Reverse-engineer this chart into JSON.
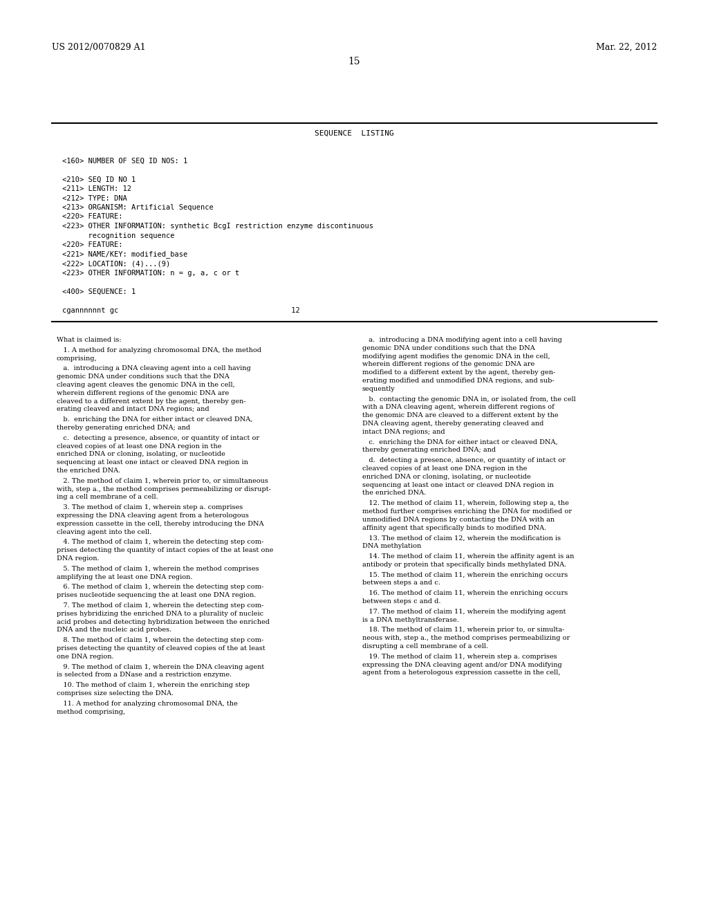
{
  "background_color": "#ffffff",
  "header_left": "US 2012/0070829 A1",
  "header_right": "Mar. 22, 2012",
  "page_number": "15",
  "sequence_listing_title": "SEQUENCE  LISTING",
  "seq_lines": [
    {
      "text": "<160> NUMBER OF SEQ ID NOS: 1",
      "blank_before": 1
    },
    {
      "text": "<210> SEQ ID NO 1",
      "blank_before": 1
    },
    {
      "text": "<211> LENGTH: 12",
      "blank_before": 0
    },
    {
      "text": "<212> TYPE: DNA",
      "blank_before": 0
    },
    {
      "text": "<213> ORGANISM: Artificial Sequence",
      "blank_before": 0
    },
    {
      "text": "<220> FEATURE:",
      "blank_before": 0
    },
    {
      "text": "<223> OTHER INFORMATION: synthetic BcgI restriction enzyme discontinuous",
      "blank_before": 0
    },
    {
      "text": "      recognition sequence",
      "blank_before": 0
    },
    {
      "text": "<220> FEATURE:",
      "blank_before": 0
    },
    {
      "text": "<221> NAME/KEY: modified_base",
      "blank_before": 0
    },
    {
      "text": "<222> LOCATION: (4)...(9)",
      "blank_before": 0
    },
    {
      "text": "<223> OTHER INFORMATION: n = g, a, c or t",
      "blank_before": 0
    },
    {
      "text": "<400> SEQUENCE: 1",
      "blank_before": 1
    },
    {
      "text": "cgannnnnnt gc                                        12",
      "blank_before": 1
    }
  ],
  "left_col_blocks": [
    {
      "indent": 0,
      "text": "What is claimed is:"
    },
    {
      "indent": 1,
      "text": "   1. A method for analyzing chromosomal DNA, the method\ncomprising,"
    },
    {
      "indent": 2,
      "text": "   a.  introducing a DNA cleaving agent into a cell having\ngenomic DNA under conditions such that the DNA\ncleaving agent cleaves the genomic DNA in the cell,\nwherein different regions of the genomic DNA are\ncleaved to a different extent by the agent, thereby gen-\nerating cleaved and intact DNA regions; and"
    },
    {
      "indent": 2,
      "text": "   b.  enriching the DNA for either intact or cleaved DNA,\nthereby generating enriched DNA; and"
    },
    {
      "indent": 2,
      "text": "   c.  detecting a presence, absence, or quantity of intact or\ncleaved copies of at least one DNA region in the\nenriched DNA or cloning, isolating, or nucleotide\nsequencing at least one intact or cleaved DNA region in\nthe enriched DNA."
    },
    {
      "indent": 1,
      "text": "   2. The method of claim 1, wherein prior to, or simultaneous\nwith, step a., the method comprises permeabilizing or disrupt-\ning a cell membrane of a cell."
    },
    {
      "indent": 1,
      "text": "   3. The method of claim 1, wherein step a. comprises\nexpressing the DNA cleaving agent from a heterologous\nexpression cassette in the cell, thereby introducing the DNA\ncleaving agent into the cell."
    },
    {
      "indent": 1,
      "text": "   4. The method of claim 1, wherein the detecting step com-\nprises detecting the quantity of intact copies of the at least one\nDNA region."
    },
    {
      "indent": 1,
      "text": "   5. The method of claim 1, wherein the method comprises\namplifying the at least one DNA region."
    },
    {
      "indent": 1,
      "text": "   6. The method of claim 1, wherein the detecting step com-\nprises nucleotide sequencing the at least one DNA region."
    },
    {
      "indent": 1,
      "text": "   7. The method of claim 1, wherein the detecting step com-\nprises hybridizing the enriched DNA to a plurality of nucleic\nacid probes and detecting hybridization between the enriched\nDNA and the nucleic acid probes."
    },
    {
      "indent": 1,
      "text": "   8. The method of claim 1, wherein the detecting step com-\nprises detecting the quantity of cleaved copies of the at least\none DNA region."
    },
    {
      "indent": 1,
      "text": "   9. The method of claim 1, wherein the DNA cleaving agent\nis selected from a DNase and a restriction enzyme."
    },
    {
      "indent": 1,
      "text": "   10. The method of claim 1, wherein the enriching step\ncomprises size selecting the DNA."
    },
    {
      "indent": 1,
      "text": "   11. A method for analyzing chromosomal DNA, the\nmethod comprising,"
    }
  ],
  "right_col_blocks": [
    {
      "indent": 2,
      "text": "   a.  introducing a DNA modifying agent into a cell having\ngenomic DNA under conditions such that the DNA\nmodifying agent modifies the genomic DNA in the cell,\nwherein different regions of the genomic DNA are\nmodified to a different extent by the agent, thereby gen-\nerating modified and unmodified DNA regions, and sub-\nsequently"
    },
    {
      "indent": 2,
      "text": "   b.  contacting the genomic DNA in, or isolated from, the cell\nwith a DNA cleaving agent, wherein different regions of\nthe genomic DNA are cleaved to a different extent by the\nDNA cleaving agent, thereby generating cleaved and\nintact DNA regions; and"
    },
    {
      "indent": 2,
      "text": "   c.  enriching the DNA for either intact or cleaved DNA,\nthereby generating enriched DNA; and"
    },
    {
      "indent": 2,
      "text": "   d.  detecting a presence, absence, or quantity of intact or\ncleaved copies of at least one DNA region in the\nenriched DNA or cloning, isolating, or nucleotide\nsequencing at least one intact or cleaved DNA region in\nthe enriched DNA."
    },
    {
      "indent": 1,
      "text": "   12. The method of claim 11, wherein, following step a, the\nmethod further comprises enriching the DNA for modified or\nunmodified DNA regions by contacting the DNA with an\naffinity agent that specifically binds to modified DNA."
    },
    {
      "indent": 1,
      "text": "   13. The method of claim 12, wherein the modification is\nDNA methylation"
    },
    {
      "indent": 1,
      "text": "   14. The method of claim 11, wherein the affinity agent is an\nantibody or protein that specifically binds methylated DNA."
    },
    {
      "indent": 1,
      "text": "   15. The method of claim 11, wherein the enriching occurs\nbetween steps a and c."
    },
    {
      "indent": 1,
      "text": "   16. The method of claim 11, wherein the enriching occurs\nbetween steps c and d."
    },
    {
      "indent": 1,
      "text": "   17. The method of claim 11, wherein the modifying agent\nis a DNA methyltransferase."
    },
    {
      "indent": 1,
      "text": "   18. The method of claim 11, wherein prior to, or simulta-\nneous with, step a., the method comprises permeabilizing or\ndisrupting a cell membrane of a cell."
    },
    {
      "indent": 1,
      "text": "   19. The method of claim 11, wherein step a. comprises\nexpressing the DNA cleaving agent and/or DNA modifying\nagent from a heterologous expression cassette in the cell,"
    }
  ]
}
